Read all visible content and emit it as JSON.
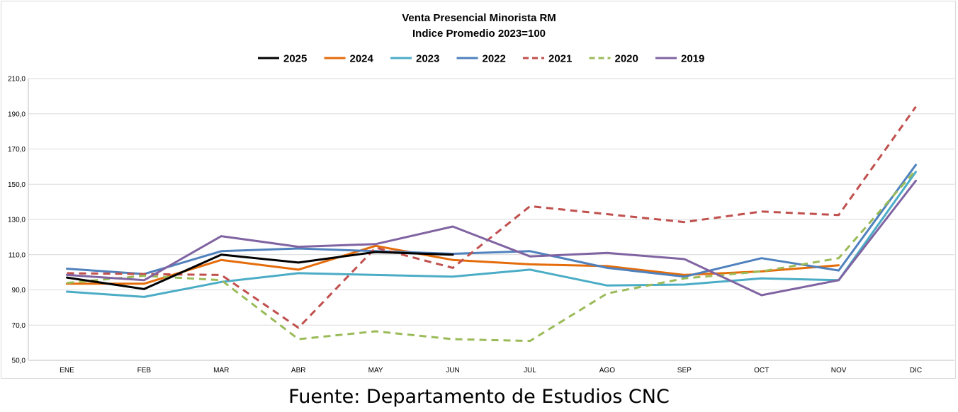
{
  "chart_data": {
    "type": "line",
    "title": "Venta Presencial Minorista RM",
    "subtitle": "Indice Promedio 2023=100",
    "xlabel": "",
    "ylabel": "",
    "categories": [
      "ENE",
      "FEB",
      "MAR",
      "ABR",
      "MAY",
      "JUN",
      "JUL",
      "AGO",
      "SEP",
      "OCT",
      "NOV",
      "DIC"
    ],
    "ylim": [
      50,
      210
    ],
    "yticks": [
      "50,0",
      "70,0",
      "90,0",
      "110,0",
      "130,0",
      "150,0",
      "170,0",
      "190,0",
      "210,0"
    ],
    "grid": "horizontal",
    "legend_position": "top",
    "series": [
      {
        "name": "2025",
        "color": "#000000",
        "dash": "solid",
        "values": [
          97,
          90.5,
          110,
          105.5,
          111.5,
          110,
          null,
          null,
          null,
          null,
          null,
          null
        ]
      },
      {
        "name": "2024",
        "color": "#e46c0a",
        "dash": "solid",
        "values": [
          93.5,
          93.5,
          107,
          101.5,
          115,
          107,
          104.5,
          103.5,
          98.5,
          100.5,
          104,
          null
        ]
      },
      {
        "name": "2023",
        "color": "#4bacc6",
        "dash": "solid",
        "values": [
          89,
          86,
          94.5,
          99.5,
          98.5,
          97.5,
          101.5,
          92.5,
          93,
          96.5,
          95.5,
          157
        ]
      },
      {
        "name": "2022",
        "color": "#4f81bd",
        "dash": "solid",
        "values": [
          102,
          99,
          112,
          113.5,
          112,
          110.5,
          112,
          102.5,
          97.5,
          108,
          101,
          161
        ]
      },
      {
        "name": "2021",
        "color": "#c0504d",
        "dash": "dashed",
        "values": [
          99.5,
          99,
          98.5,
          68.5,
          114,
          102.5,
          137.5,
          133,
          128.5,
          134.5,
          132.5,
          194
        ]
      },
      {
        "name": "2020",
        "color": "#9bbb59",
        "dash": "dashed",
        "values": [
          94,
          98,
          95.5,
          62,
          66.5,
          62,
          61,
          88,
          96.5,
          100.5,
          108,
          158
        ]
      },
      {
        "name": "2019",
        "color": "#8064a2",
        "dash": "solid",
        "values": [
          98.5,
          95.5,
          120.5,
          114.5,
          116,
          126,
          109,
          111,
          107.5,
          87,
          95.5,
          152
        ]
      }
    ]
  },
  "source": "Fuente: Departamento de Estudios CNC"
}
